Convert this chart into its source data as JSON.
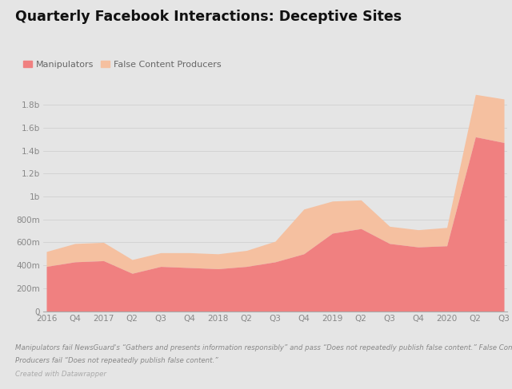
{
  "title": "Quarterly Facebook Interactions: Deceptive Sites",
  "background_color": "#e5e5e5",
  "plot_bg_color": "#e5e5e5",
  "manipulators_color": "#f08080",
  "false_content_color": "#f5c0a0",
  "x_labels": [
    "2016",
    "Q4",
    "2017",
    "Q2",
    "Q3",
    "Q4",
    "2018",
    "Q2",
    "Q3",
    "Q4",
    "2019",
    "Q2",
    "Q3",
    "Q4",
    "2020",
    "Q2",
    "Q3"
  ],
  "manipulators": [
    390,
    430,
    440,
    330,
    390,
    380,
    370,
    390,
    430,
    500,
    680,
    720,
    590,
    560,
    570,
    1520,
    1470
  ],
  "false_content_producers": [
    130,
    160,
    160,
    120,
    120,
    130,
    130,
    140,
    180,
    390,
    280,
    250,
    150,
    150,
    160,
    370,
    380
  ],
  "ylabel_ticks": [
    0,
    200,
    400,
    600,
    800,
    1000,
    1200,
    1400,
    1600,
    1800
  ],
  "ylabel_labels": [
    "0",
    "200m",
    "400m",
    "600m",
    "800m",
    "1b",
    "1.2b",
    "1.4b",
    "1.6b",
    "1.8b"
  ],
  "ylim": [
    0,
    1950
  ],
  "footnote1": "Manipulators fail NewsGuard's “Gathers and presents information responsibly” and pass “Does not repeatedly publish false content.” False Content",
  "footnote2": "Producers fail “Does not repeatedly publish false content.”",
  "footnote3": "Created with Datawrapper"
}
